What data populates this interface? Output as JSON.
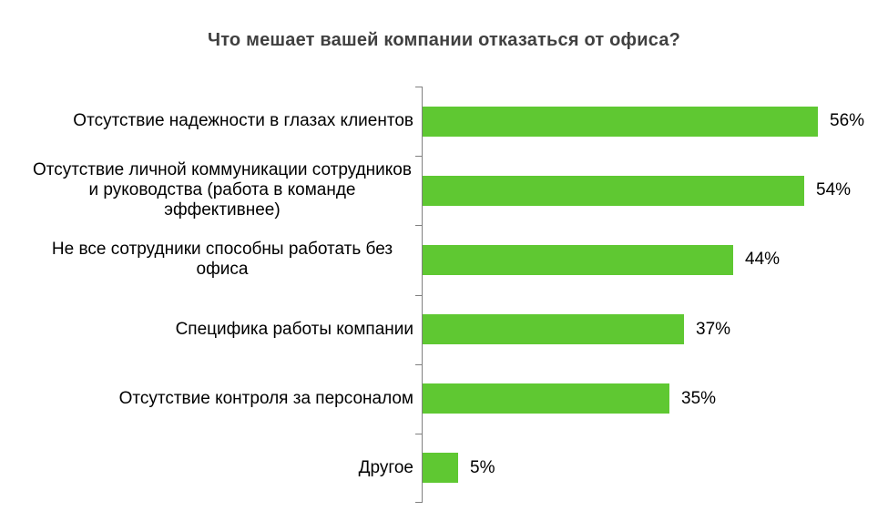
{
  "chart_data": {
    "type": "bar",
    "orientation": "horizontal",
    "title": "Что мешает вашей компании отказаться от офиса?",
    "unit": "%",
    "legend": "none",
    "grid": false,
    "value_axis_hint": "no numeric axis shown; values labeled at bar ends",
    "categories": [
      "Отсутствие надежности в глазах клиентов",
      "Отсутствие личной коммуникации сотрудников и руководства (работа в команде эффективнее)",
      "Не все сотрудники способны работать без офиса",
      "Специфика работы компании",
      "Отсутствие контроля за персоналом",
      "Другое"
    ],
    "values": [
      56,
      54,
      44,
      37,
      35,
      5
    ],
    "bars": [
      {
        "label": "Отсутствие надежности в глазах клиентов",
        "value": 56,
        "value_label": "56%"
      },
      {
        "label": "Отсутствие личной коммуникации сотрудников и руководства (работа в команде эффективнее)",
        "value": 54,
        "value_label": "54%"
      },
      {
        "label": "Не все сотрудники способны работать без офиса",
        "value": 44,
        "value_label": "44%"
      },
      {
        "label": "Специфика работы компании",
        "value": 37,
        "value_label": "37%"
      },
      {
        "label": "Отсутствие контроля за персоналом",
        "value": 35,
        "value_label": "35%"
      },
      {
        "label": "Другое",
        "value": 5,
        "value_label": "5%"
      }
    ],
    "colors": {
      "bar": "#5FC832",
      "title": "#404040",
      "text": "#000000",
      "axis": "#808080",
      "background": "#FFFFFF"
    }
  }
}
